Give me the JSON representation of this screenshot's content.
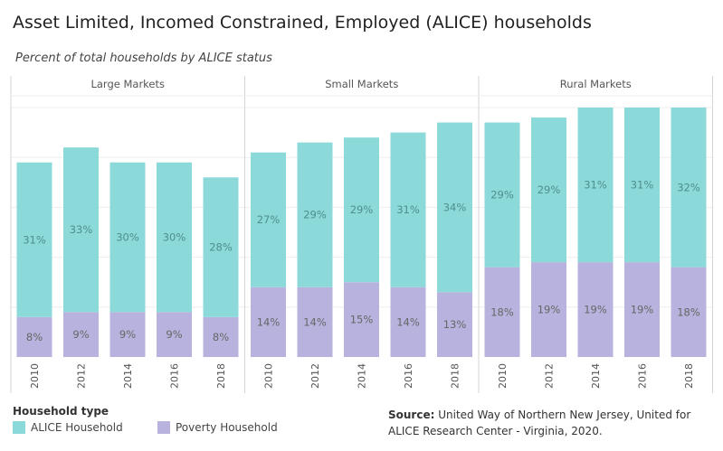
{
  "title": "Asset Limited, Incomed Constrained, Employed (ALICE) households",
  "subtitle": "Percent of total households by ALICE status",
  "legend": {
    "title": "Household type",
    "items": [
      "ALICE Household",
      "Poverty Household"
    ]
  },
  "source": {
    "label": "Source:",
    "text": "United Way of Northern New Jersey, United for ALICE Research Center - Virginia, 2020."
  },
  "colors": {
    "alice": "#8cd9d9",
    "poverty": "#b8b3de"
  },
  "chart_data": {
    "type": "bar",
    "stacked": true,
    "panels": [
      {
        "name": "Large Markets",
        "categories": [
          "2010",
          "2012",
          "2014",
          "2016",
          "2018"
        ],
        "series": [
          {
            "name": "Poverty Household",
            "values": [
              8,
              9,
              9,
              9,
              8
            ],
            "labels": [
              "8%",
              "9%",
              "9%",
              "9%",
              "8%"
            ]
          },
          {
            "name": "ALICE Household",
            "values": [
              31,
              33,
              30,
              30,
              28
            ],
            "labels": [
              "31%",
              "33%",
              "30%",
              "30%",
              "28%"
            ]
          }
        ]
      },
      {
        "name": "Small Markets",
        "categories": [
          "2010",
          "2012",
          "2014",
          "2016",
          "2018"
        ],
        "series": [
          {
            "name": "Poverty Household",
            "values": [
              14,
              14,
              15,
              14,
              13
            ],
            "labels": [
              "14%",
              "14%",
              "15%",
              "14%",
              "13%"
            ]
          },
          {
            "name": "ALICE Household",
            "values": [
              27,
              29,
              29,
              31,
              34
            ],
            "labels": [
              "27%",
              "29%",
              "29%",
              "31%",
              "34%"
            ]
          }
        ]
      },
      {
        "name": "Rural Markets",
        "categories": [
          "2010",
          "2012",
          "2014",
          "2016",
          "2018"
        ],
        "series": [
          {
            "name": "Poverty Household",
            "values": [
              18,
              19,
              19,
              19,
              18
            ],
            "labels": [
              "18%",
              "19%",
              "19%",
              "19%",
              "18%"
            ]
          },
          {
            "name": "ALICE Household",
            "values": [
              29,
              29,
              31,
              31,
              32
            ],
            "labels": [
              "29%",
              "29%",
              "31%",
              "31%",
              "32%"
            ]
          }
        ]
      }
    ],
    "ylim": [
      0,
      50
    ],
    "y_axis_labels": false,
    "grid": true,
    "legend_position": "bottom-left"
  }
}
